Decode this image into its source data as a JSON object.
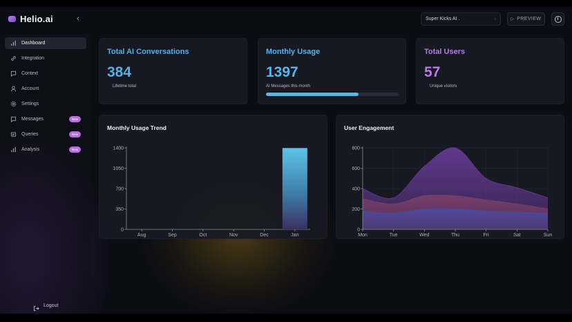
{
  "app": {
    "name": "Helio.ai"
  },
  "header": {
    "project_value": "Super Kicks AI .",
    "preview_label": "PREVIEW"
  },
  "sidebar": {
    "items": [
      {
        "label": "Dashboard",
        "icon": "bar-chart-icon",
        "active": true
      },
      {
        "label": "Integration",
        "icon": "link-icon"
      },
      {
        "label": "Context",
        "icon": "message-square-icon"
      },
      {
        "label": "Account",
        "icon": "user-icon"
      },
      {
        "label": "Settings",
        "icon": "gear-icon"
      },
      {
        "label": "Messages",
        "icon": "message-square-icon",
        "badge": "New"
      },
      {
        "label": "Queries",
        "icon": "queries-icon",
        "badge": "New"
      },
      {
        "label": "Analysis",
        "icon": "bar-chart-icon",
        "badge": "New"
      }
    ],
    "logout_label": "Logout"
  },
  "stats": {
    "conversations": {
      "title": "Total AI Conversations",
      "value": "384",
      "sub": "Lifetime total",
      "color": "#5aaee4"
    },
    "usage": {
      "title": "Monthly Usage",
      "value": "1397",
      "sub": "AI Messages this month",
      "color": "#5ab4e8",
      "progress": 0.7
    },
    "users": {
      "title": "Total Users",
      "value": "57",
      "sub": "Unique visitors",
      "color": "#b77be6"
    }
  },
  "chart_data": [
    {
      "type": "bar",
      "title": "Monthly Usage Trend",
      "categories": [
        "Aug",
        "Sep",
        "Oct",
        "Nov",
        "Dec",
        "Jan"
      ],
      "values": [
        0,
        0,
        0,
        0,
        0,
        1397
      ],
      "yticks": [
        0,
        350,
        700,
        1050,
        1400
      ],
      "ylim": [
        0,
        1400
      ],
      "bar_color": "#4fb3dc"
    },
    {
      "type": "area",
      "title": "User Engagement",
      "categories": [
        "Mon",
        "Tue",
        "Wed",
        "Thu",
        "Fri",
        "Sat",
        "Sun"
      ],
      "series": [
        {
          "values": [
            400,
            310,
            620,
            800,
            500,
            410,
            310
          ],
          "color": "#6a3c9a"
        },
        {
          "values": [
            300,
            250,
            330,
            330,
            290,
            250,
            200
          ],
          "color": "#7c4068"
        },
        {
          "values": [
            180,
            160,
            200,
            200,
            180,
            170,
            160
          ],
          "color": "#4a4aa0"
        }
      ],
      "yticks": [
        0,
        200,
        400,
        600,
        800
      ],
      "ylim": [
        0,
        800
      ],
      "grid": true
    }
  ]
}
